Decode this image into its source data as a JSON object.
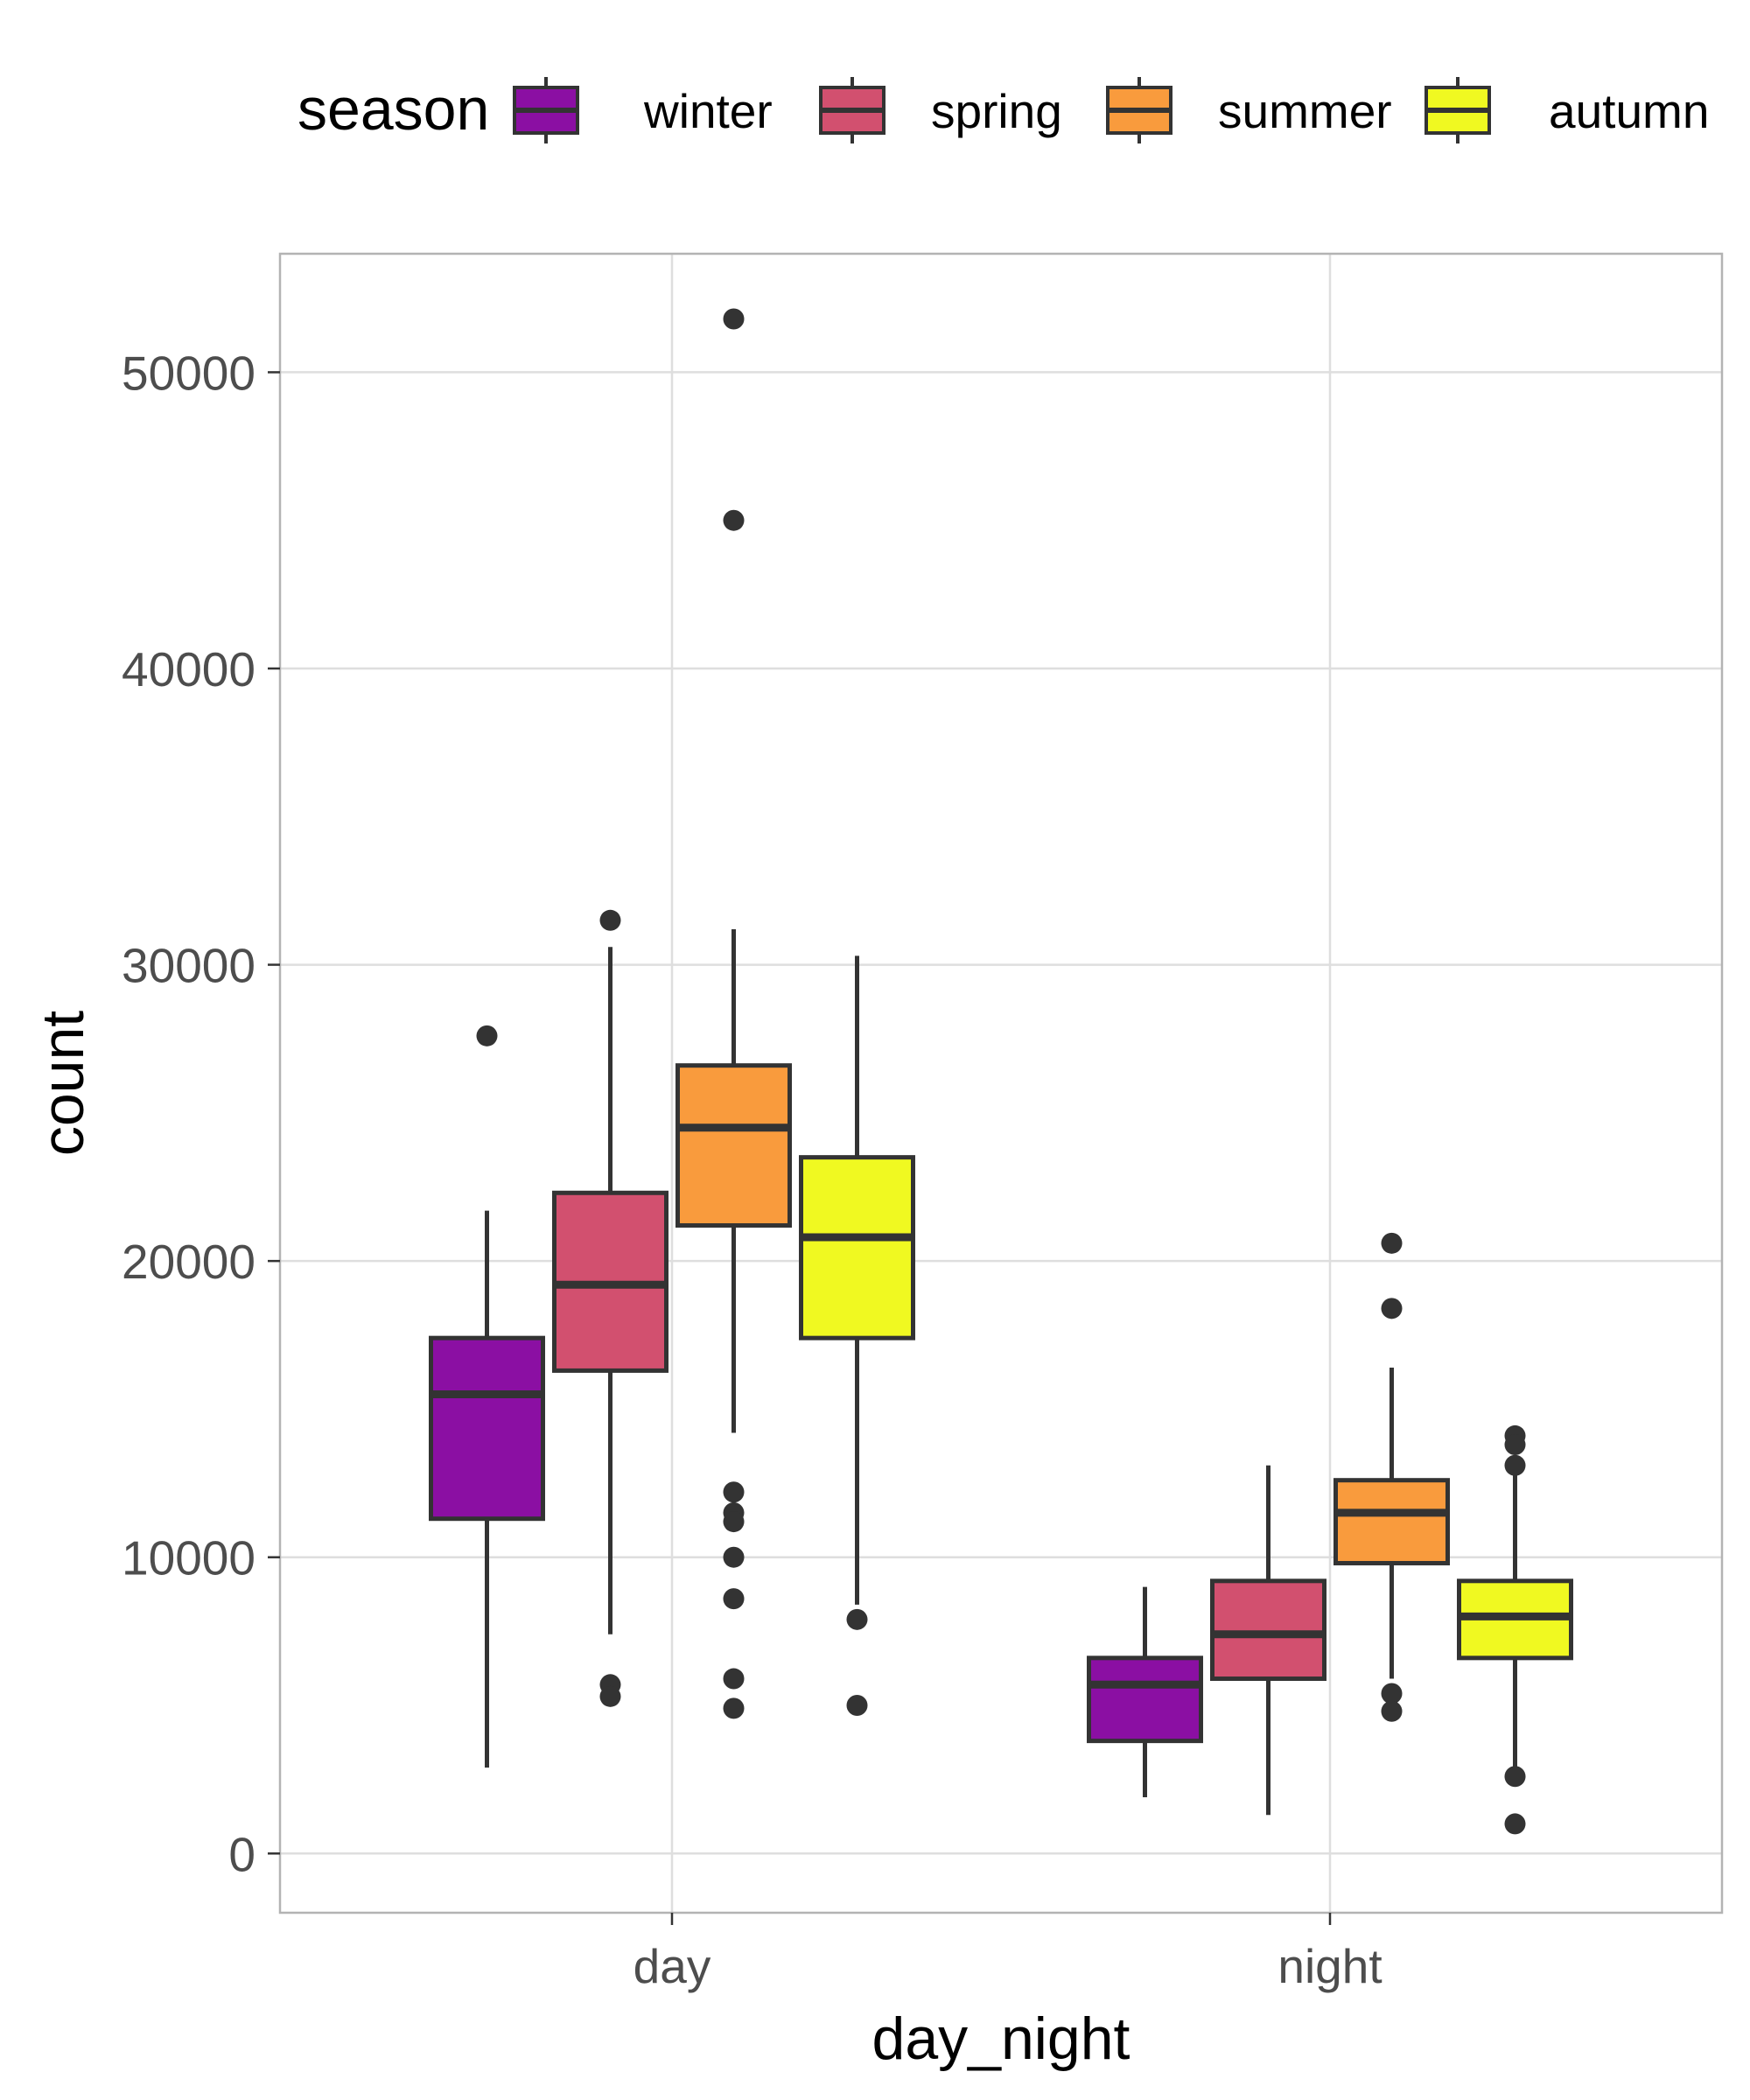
{
  "chart_data": {
    "type": "boxplot",
    "title": "",
    "xlabel": "day_night",
    "ylabel": "count",
    "ylim": [
      -2000,
      54000
    ],
    "y_ticks": [
      0,
      10000,
      20000,
      30000,
      40000,
      50000
    ],
    "y_tick_labels": [
      "0",
      "10000",
      "20000",
      "30000",
      "40000",
      "50000"
    ],
    "categories": [
      "day",
      "night"
    ],
    "legend": {
      "title": "season",
      "position": "top",
      "items": [
        {
          "label": "winter",
          "color": "#8B0FA3"
        },
        {
          "label": "spring",
          "color": "#D2506F"
        },
        {
          "label": "summer",
          "color": "#F99B3D"
        },
        {
          "label": "autumn",
          "color": "#F0F921"
        }
      ]
    },
    "series": [
      {
        "name": "winter",
        "color": "#8B0FA3",
        "boxes": [
          {
            "category": "day",
            "whisker_low": 2900,
            "q1": 11300,
            "median": 15500,
            "q3": 17400,
            "whisker_high": 21700,
            "outliers": [
              27600
            ]
          },
          {
            "category": "night",
            "whisker_low": 1900,
            "q1": 3800,
            "median": 5700,
            "q3": 6600,
            "whisker_high": 9000,
            "outliers": []
          }
        ]
      },
      {
        "name": "spring",
        "color": "#D2506F",
        "boxes": [
          {
            "category": "day",
            "whisker_low": 7400,
            "q1": 16300,
            "median": 19200,
            "q3": 22300,
            "whisker_high": 30600,
            "outliers": [
              31500,
              5700,
              5300
            ]
          },
          {
            "category": "night",
            "whisker_low": 1300,
            "q1": 5900,
            "median": 7400,
            "q3": 9200,
            "whisker_high": 13100,
            "outliers": []
          }
        ]
      },
      {
        "name": "summer",
        "color": "#F99B3D",
        "boxes": [
          {
            "category": "day",
            "whisker_low": 14200,
            "q1": 21200,
            "median": 24500,
            "q3": 26600,
            "whisker_high": 31200,
            "outliers": [
              51800,
              45000,
              12200,
              11500,
              11200,
              10000,
              8600,
              5900,
              4900
            ]
          },
          {
            "category": "night",
            "whisker_low": 5900,
            "q1": 9800,
            "median": 11500,
            "q3": 12600,
            "whisker_high": 16400,
            "outliers": [
              20600,
              18400,
              5400,
              4800
            ]
          }
        ]
      },
      {
        "name": "autumn",
        "color": "#F0F921",
        "boxes": [
          {
            "category": "day",
            "whisker_low": 8400,
            "q1": 17400,
            "median": 20800,
            "q3": 23500,
            "whisker_high": 30300,
            "outliers": [
              7900,
              5000
            ]
          },
          {
            "category": "night",
            "whisker_low": 2900,
            "q1": 6600,
            "median": 8000,
            "q3": 9200,
            "whisker_high": 12800,
            "outliers": [
              14100,
              13800,
              13100,
              2600,
              1000
            ]
          }
        ]
      }
    ]
  }
}
